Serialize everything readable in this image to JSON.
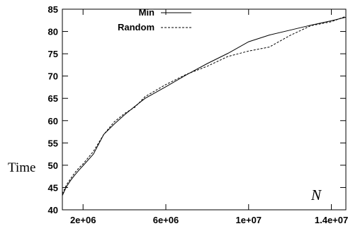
{
  "chart_data": {
    "type": "line",
    "title": "",
    "xlabel": "N",
    "ylabel": "Time",
    "xlim": [
      1000000,
      14700000
    ],
    "ylim": [
      40,
      85
    ],
    "x_ticks": [
      {
        "value": 2000000,
        "label": "2e+06"
      },
      {
        "value": 6000000,
        "label": "6e+06"
      },
      {
        "value": 10000000,
        "label": "1e+07"
      },
      {
        "value": 14000000,
        "label": "1.4e+07"
      }
    ],
    "y_ticks": [
      {
        "value": 40,
        "label": "40"
      },
      {
        "value": 45,
        "label": "45"
      },
      {
        "value": 50,
        "label": "50"
      },
      {
        "value": 55,
        "label": "55"
      },
      {
        "value": 60,
        "label": "60"
      },
      {
        "value": 65,
        "label": "65"
      },
      {
        "value": 70,
        "label": "70"
      },
      {
        "value": 75,
        "label": "75"
      },
      {
        "value": 80,
        "label": "80"
      },
      {
        "value": 85,
        "label": "85"
      }
    ],
    "grid": false,
    "legend_position": "top-left",
    "series": [
      {
        "name": "Min",
        "style": "solid",
        "color": "#000000",
        "x": [
          1000000,
          1200000,
          1400000,
          1600000,
          1800000,
          2000000,
          2500000,
          3000000,
          3500000,
          4000000,
          4500000,
          5000000,
          6000000,
          7000000,
          8000000,
          9000000,
          10000000,
          11000000,
          12000000,
          13000000,
          14000000,
          14700000
        ],
        "y": [
          43.2,
          45.2,
          46.6,
          47.8,
          48.9,
          49.9,
          52.5,
          56.9,
          59.2,
          61.3,
          63.2,
          65.0,
          67.6,
          70.3,
          72.8,
          75.1,
          77.7,
          79.2,
          80.3,
          81.4,
          82.4,
          83.2
        ]
      },
      {
        "name": "Random",
        "style": "dashed",
        "color": "#000000",
        "x": [
          1000000,
          1200000,
          1400000,
          1600000,
          1800000,
          2000000,
          2500000,
          3000000,
          3500000,
          4000000,
          4500000,
          5000000,
          6000000,
          7000000,
          8000000,
          9000000,
          10000000,
          11000000,
          12000000,
          13000000,
          14000000,
          14700000
        ],
        "y": [
          43.6,
          45.6,
          47.0,
          48.3,
          49.4,
          50.3,
          53.1,
          56.9,
          59.7,
          61.6,
          63.0,
          65.4,
          68.1,
          70.4,
          72.2,
          74.4,
          75.6,
          76.5,
          79.1,
          81.3,
          82.2,
          83.4
        ]
      }
    ]
  }
}
